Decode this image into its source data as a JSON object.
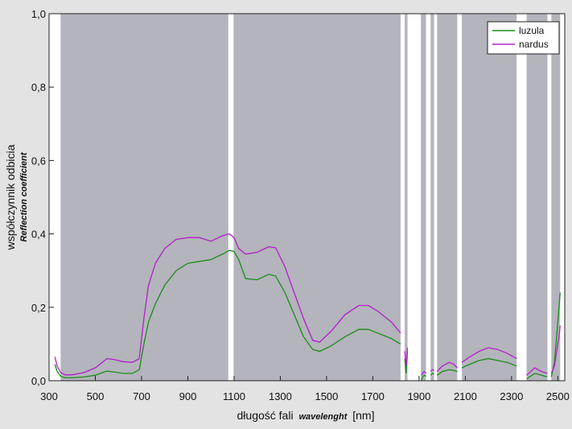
{
  "chart_data": {
    "type": "line",
    "xlabel_main": "długość fali",
    "xlabel_sub": "wavelenght",
    "xlabel_unit": "[nm]",
    "ylabel_main": "współczynnik odbicia",
    "ylabel_sub": "Reflection coefficient",
    "xlim": [
      300,
      2530
    ],
    "ylim": [
      0,
      1.0
    ],
    "x_ticks": [
      300,
      500,
      700,
      900,
      1100,
      1300,
      1500,
      1700,
      1900,
      2100,
      2300,
      2500
    ],
    "y_ticks": [
      0,
      0.2,
      0.4,
      0.6,
      0.8,
      1.0
    ],
    "x_tick_labels": [
      "300",
      "500",
      "700",
      "900",
      "1100",
      "1300",
      "1500",
      "1700",
      "1900",
      "2100",
      "2300",
      "2500"
    ],
    "y_tick_labels": [
      "0,0",
      "0,2",
      "0,4",
      "0,6",
      "0,8",
      "1,0"
    ],
    "legend_position": "top-right",
    "colors": {
      "plot_bg": "#b4b4bc",
      "gap": "#ffffff",
      "frame": "#e3e3e3"
    },
    "data_bands": [
      [
        350,
        1075
      ],
      [
        1098,
        1820
      ],
      [
        1838,
        1850
      ],
      [
        1908,
        1930
      ],
      [
        1950,
        1965
      ],
      [
        1978,
        2065
      ],
      [
        2085,
        2322
      ],
      [
        2365,
        2455
      ],
      [
        2472,
        2510
      ]
    ],
    "series": [
      {
        "name": "luzula",
        "color": "#1a8c1a",
        "segments": [
          {
            "x": [
              325,
              335,
              350,
              370,
              400,
              450,
              500,
              530,
              550,
              580,
              620,
              660,
              690,
              710,
              730,
              760,
              800,
              850,
              900,
              950,
              1000,
              1050,
              1080,
              1100,
              1120,
              1150,
              1200,
              1250,
              1280,
              1320,
              1360,
              1400,
              1440,
              1470,
              1520,
              1580,
              1640,
              1680,
              1720,
              1780,
              1820
            ],
            "y": [
              0.045,
              0.025,
              0.012,
              0.008,
              0.008,
              0.01,
              0.015,
              0.022,
              0.026,
              0.024,
              0.02,
              0.02,
              0.03,
              0.1,
              0.16,
              0.21,
              0.26,
              0.3,
              0.32,
              0.325,
              0.33,
              0.345,
              0.355,
              0.352,
              0.33,
              0.278,
              0.275,
              0.29,
              0.285,
              0.24,
              0.18,
              0.12,
              0.085,
              0.08,
              0.095,
              0.12,
              0.14,
              0.14,
              0.13,
              0.115,
              0.1
            ]
          },
          {
            "x": [
              1838,
              1844,
              1850
            ],
            "y": [
              0.06,
              0.02,
              0.08
            ]
          },
          {
            "x": [
              1910,
              1915,
              1922,
              1930
            ],
            "y": [
              0.0,
              0.01,
              0.015,
              0.012
            ]
          },
          {
            "x": [
              1950,
              1958,
              1965
            ],
            "y": [
              0.015,
              0.02,
              0.018
            ]
          },
          {
            "x": [
              1978,
              2000,
              2030,
              2050,
              2065
            ],
            "y": [
              0.015,
              0.025,
              0.03,
              0.028,
              0.025
            ]
          },
          {
            "x": [
              2085,
              2120,
              2160,
              2200,
              2240,
              2280,
              2322
            ],
            "y": [
              0.035,
              0.045,
              0.055,
              0.06,
              0.055,
              0.05,
              0.04
            ]
          },
          {
            "x": [
              2365,
              2400,
              2430,
              2455
            ],
            "y": [
              0.005,
              0.02,
              0.015,
              0.01
            ]
          },
          {
            "x": [
              2472,
              2485,
              2495,
              2505,
              2510
            ],
            "y": [
              0.01,
              0.05,
              0.12,
              0.2,
              0.24
            ]
          }
        ]
      },
      {
        "name": "nardus",
        "color": "#b020c8",
        "segments": [
          {
            "x": [
              325,
              335,
              350,
              370,
              400,
              450,
              500,
              530,
              550,
              580,
              620,
              660,
              690,
              710,
              730,
              760,
              800,
              850,
              900,
              950,
              1000,
              1050,
              1080,
              1100,
              1120,
              1150,
              1200,
              1250,
              1280,
              1320,
              1360,
              1400,
              1440,
              1470,
              1520,
              1580,
              1640,
              1680,
              1720,
              1780,
              1820
            ],
            "y": [
              0.065,
              0.04,
              0.022,
              0.016,
              0.016,
              0.022,
              0.035,
              0.05,
              0.06,
              0.058,
              0.052,
              0.05,
              0.06,
              0.17,
              0.26,
              0.32,
              0.36,
              0.385,
              0.39,
              0.39,
              0.38,
              0.395,
              0.4,
              0.39,
              0.36,
              0.345,
              0.35,
              0.365,
              0.362,
              0.31,
              0.24,
              0.17,
              0.11,
              0.105,
              0.135,
              0.18,
              0.205,
              0.205,
              0.19,
              0.16,
              0.13
            ]
          },
          {
            "x": [
              1838,
              1844,
              1850
            ],
            "y": [
              0.08,
              0.04,
              0.09
            ]
          },
          {
            "x": [
              1910,
              1915,
              1922,
              1930
            ],
            "y": [
              0.015,
              0.02,
              0.025,
              0.02
            ]
          },
          {
            "x": [
              1950,
              1958,
              1965
            ],
            "y": [
              0.025,
              0.03,
              0.028
            ]
          },
          {
            "x": [
              1978,
              2000,
              2030,
              2050,
              2065
            ],
            "y": [
              0.025,
              0.04,
              0.05,
              0.045,
              0.035
            ]
          },
          {
            "x": [
              2085,
              2120,
              2160,
              2200,
              2240,
              2280,
              2322
            ],
            "y": [
              0.05,
              0.065,
              0.08,
              0.09,
              0.085,
              0.075,
              0.06
            ]
          },
          {
            "x": [
              2365,
              2400,
              2430,
              2455
            ],
            "y": [
              0.015,
              0.035,
              0.025,
              0.02
            ]
          },
          {
            "x": [
              2472,
              2485,
              2495,
              2505,
              2510
            ],
            "y": [
              0.02,
              0.04,
              0.08,
              0.12,
              0.15
            ]
          }
        ]
      }
    ]
  }
}
